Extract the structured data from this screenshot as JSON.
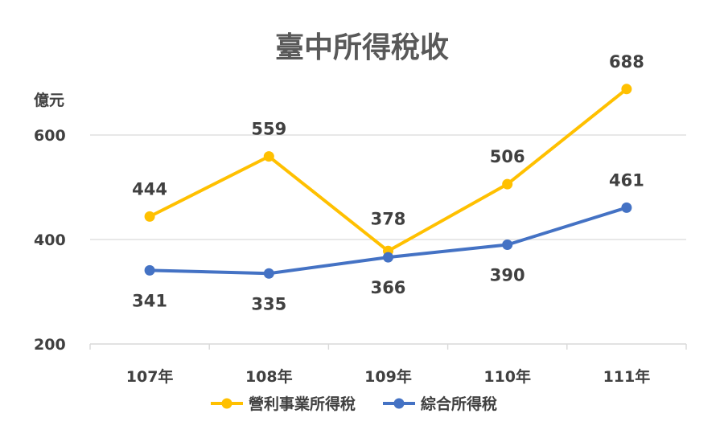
{
  "chart_data": {
    "type": "line",
    "title": "臺中所得稅收",
    "ylabel": "億元",
    "ylim": [
      200,
      700
    ],
    "yticks": [
      200,
      400,
      600
    ],
    "categories": [
      "107年",
      "108年",
      "109年",
      "110年",
      "111年"
    ],
    "series": [
      {
        "name": "營利事業所得稅",
        "color": "#FFC000",
        "values": [
          444,
          559,
          378,
          506,
          688
        ]
      },
      {
        "name": "綜合所得稅",
        "color": "#4472C4",
        "values": [
          341,
          335,
          366,
          390,
          461
        ]
      }
    ],
    "grid": true,
    "legend": "bottom"
  }
}
